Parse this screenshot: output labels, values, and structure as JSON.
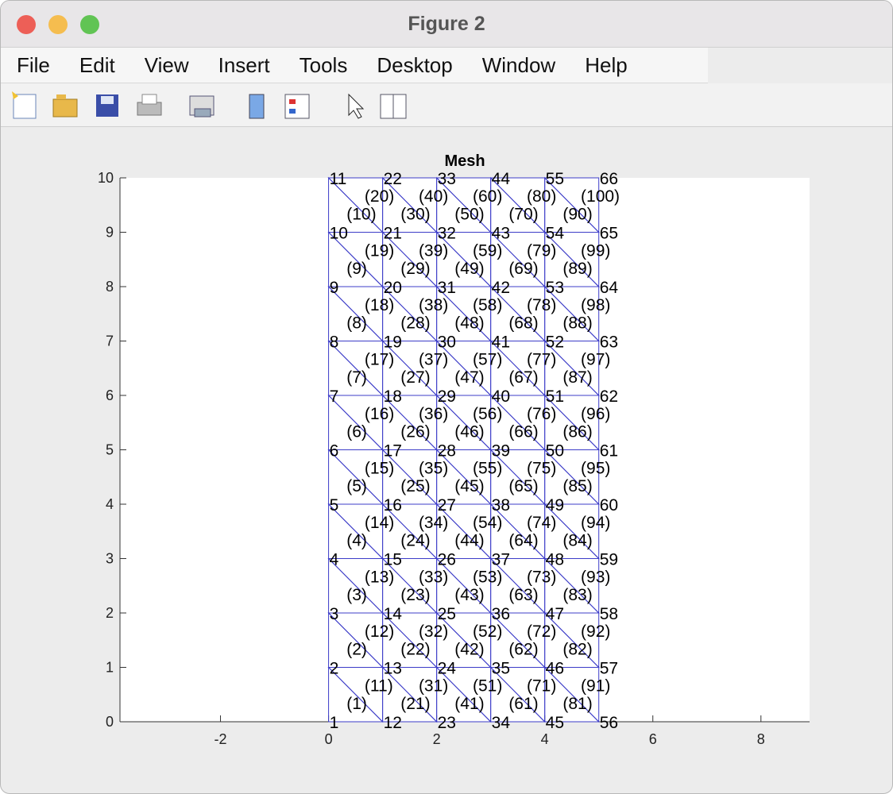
{
  "window": {
    "title": "Figure 2",
    "menu": [
      "File",
      "Edit",
      "View",
      "Insert",
      "Tools",
      "Desktop",
      "Window",
      "Help"
    ]
  },
  "chart_data": {
    "type": "mesh",
    "title": "Mesh",
    "color": "#3c3cc8",
    "xlim": [
      -3.86,
      8.9
    ],
    "ylim": [
      0,
      10
    ],
    "xticks": [
      -2,
      0,
      2,
      4,
      6,
      8
    ],
    "yticks": [
      0,
      1,
      2,
      3,
      4,
      5,
      6,
      7,
      8,
      9,
      10
    ],
    "nodes": {
      "x": [
        0,
        0,
        0,
        0,
        0,
        0,
        0,
        0,
        0,
        0,
        0,
        1,
        1,
        1,
        1,
        1,
        1,
        1,
        1,
        1,
        1,
        1,
        2,
        2,
        2,
        2,
        2,
        2,
        2,
        2,
        2,
        2,
        2,
        3,
        3,
        3,
        3,
        3,
        3,
        3,
        3,
        3,
        3,
        3,
        4,
        4,
        4,
        4,
        4,
        4,
        4,
        4,
        4,
        4,
        4,
        5,
        5,
        5,
        5,
        5,
        5,
        5,
        5,
        5,
        5,
        5
      ],
      "y": [
        0,
        1,
        2,
        3,
        4,
        5,
        6,
        7,
        8,
        9,
        10,
        0,
        1,
        2,
        3,
        4,
        5,
        6,
        7,
        8,
        9,
        10,
        0,
        1,
        2,
        3,
        4,
        5,
        6,
        7,
        8,
        9,
        10,
        0,
        1,
        2,
        3,
        4,
        5,
        6,
        7,
        8,
        9,
        10,
        0,
        1,
        2,
        3,
        4,
        5,
        6,
        7,
        8,
        9,
        10,
        0,
        1,
        2,
        3,
        4,
        5,
        6,
        7,
        8,
        9,
        10
      ],
      "labels": [
        "1",
        "2",
        "3",
        "4",
        "5",
        "6",
        "7",
        "8",
        "9",
        "10",
        "11",
        "12",
        "13",
        "14",
        "15",
        "16",
        "17",
        "18",
        "19",
        "20",
        "21",
        "22",
        "23",
        "24",
        "25",
        "26",
        "27",
        "28",
        "29",
        "30",
        "31",
        "32",
        "33",
        "34",
        "35",
        "36",
        "37",
        "38",
        "39",
        "40",
        "41",
        "42",
        "43",
        "44",
        "45",
        "46",
        "47",
        "48",
        "49",
        "50",
        "51",
        "52",
        "53",
        "54",
        "55",
        "56",
        "57",
        "58",
        "59",
        "60",
        "61",
        "62",
        "63",
        "64",
        "65",
        "66"
      ]
    },
    "elements": {
      "nodes": [
        [
          1,
          12,
          2
        ],
        [
          2,
          13,
          3
        ],
        [
          3,
          14,
          4
        ],
        [
          4,
          15,
          5
        ],
        [
          5,
          16,
          6
        ],
        [
          6,
          17,
          7
        ],
        [
          7,
          18,
          8
        ],
        [
          8,
          19,
          9
        ],
        [
          9,
          20,
          10
        ],
        [
          10,
          21,
          11
        ],
        [
          12,
          13,
          2
        ],
        [
          13,
          14,
          3
        ],
        [
          14,
          15,
          4
        ],
        [
          15,
          16,
          5
        ],
        [
          16,
          17,
          6
        ],
        [
          17,
          18,
          7
        ],
        [
          18,
          19,
          8
        ],
        [
          19,
          20,
          9
        ],
        [
          20,
          21,
          10
        ],
        [
          21,
          22,
          11
        ],
        [
          12,
          23,
          13
        ],
        [
          13,
          24,
          14
        ],
        [
          14,
          25,
          15
        ],
        [
          15,
          26,
          16
        ],
        [
          16,
          27,
          17
        ],
        [
          17,
          28,
          18
        ],
        [
          18,
          29,
          19
        ],
        [
          19,
          30,
          20
        ],
        [
          20,
          31,
          21
        ],
        [
          21,
          32,
          22
        ],
        [
          23,
          24,
          13
        ],
        [
          24,
          25,
          14
        ],
        [
          25,
          26,
          15
        ],
        [
          26,
          27,
          16
        ],
        [
          27,
          28,
          17
        ],
        [
          28,
          29,
          18
        ],
        [
          29,
          30,
          19
        ],
        [
          30,
          31,
          20
        ],
        [
          31,
          32,
          21
        ],
        [
          32,
          33,
          22
        ],
        [
          23,
          34,
          24
        ],
        [
          24,
          35,
          25
        ],
        [
          25,
          36,
          26
        ],
        [
          26,
          37,
          27
        ],
        [
          27,
          38,
          28
        ],
        [
          28,
          39,
          29
        ],
        [
          29,
          40,
          30
        ],
        [
          30,
          41,
          31
        ],
        [
          31,
          42,
          32
        ],
        [
          32,
          43,
          33
        ],
        [
          34,
          35,
          24
        ],
        [
          35,
          36,
          25
        ],
        [
          36,
          37,
          26
        ],
        [
          37,
          38,
          27
        ],
        [
          38,
          39,
          28
        ],
        [
          39,
          40,
          29
        ],
        [
          40,
          41,
          30
        ],
        [
          41,
          42,
          31
        ],
        [
          42,
          43,
          32
        ],
        [
          43,
          44,
          33
        ],
        [
          34,
          45,
          35
        ],
        [
          35,
          46,
          36
        ],
        [
          36,
          47,
          37
        ],
        [
          37,
          48,
          38
        ],
        [
          38,
          49,
          39
        ],
        [
          39,
          50,
          40
        ],
        [
          40,
          51,
          41
        ],
        [
          41,
          52,
          42
        ],
        [
          42,
          53,
          43
        ],
        [
          43,
          54,
          44
        ],
        [
          45,
          46,
          35
        ],
        [
          46,
          47,
          36
        ],
        [
          47,
          48,
          37
        ],
        [
          48,
          49,
          38
        ],
        [
          49,
          50,
          39
        ],
        [
          50,
          51,
          40
        ],
        [
          51,
          52,
          41
        ],
        [
          52,
          53,
          42
        ],
        [
          53,
          54,
          43
        ],
        [
          54,
          55,
          44
        ],
        [
          45,
          56,
          46
        ],
        [
          46,
          57,
          47
        ],
        [
          47,
          58,
          48
        ],
        [
          48,
          59,
          49
        ],
        [
          49,
          60,
          50
        ],
        [
          50,
          61,
          51
        ],
        [
          51,
          62,
          52
        ],
        [
          52,
          63,
          53
        ],
        [
          53,
          64,
          54
        ],
        [
          54,
          65,
          55
        ],
        [
          56,
          57,
          46
        ],
        [
          57,
          58,
          47
        ],
        [
          58,
          59,
          48
        ],
        [
          59,
          60,
          49
        ],
        [
          60,
          61,
          50
        ],
        [
          61,
          62,
          51
        ],
        [
          62,
          63,
          52
        ],
        [
          63,
          64,
          53
        ],
        [
          64,
          65,
          54
        ],
        [
          65,
          66,
          55
        ]
      ],
      "labels": [
        "(1)",
        "(2)",
        "(3)",
        "(4)",
        "(5)",
        "(6)",
        "(7)",
        "(8)",
        "(9)",
        "(10)",
        "(11)",
        "(12)",
        "(13)",
        "(14)",
        "(15)",
        "(16)",
        "(17)",
        "(18)",
        "(19)",
        "(20)",
        "(21)",
        "(22)",
        "(23)",
        "(24)",
        "(25)",
        "(26)",
        "(27)",
        "(28)",
        "(29)",
        "(30)",
        "(31)",
        "(32)",
        "(33)",
        "(34)",
        "(35)",
        "(36)",
        "(37)",
        "(38)",
        "(39)",
        "(40)",
        "(41)",
        "(42)",
        "(43)",
        "(44)",
        "(45)",
        "(46)",
        "(47)",
        "(48)",
        "(49)",
        "(50)",
        "(51)",
        "(52)",
        "(53)",
        "(54)",
        "(55)",
        "(56)",
        "(57)",
        "(58)",
        "(59)",
        "(60)",
        "(61)",
        "(62)",
        "(63)",
        "(64)",
        "(65)",
        "(66)",
        "(67)",
        "(68)",
        "(69)",
        "(70)",
        "(71)",
        "(72)",
        "(73)",
        "(74)",
        "(75)",
        "(76)",
        "(77)",
        "(78)",
        "(79)",
        "(80)",
        "(81)",
        "(82)",
        "(83)",
        "(84)",
        "(85)",
        "(86)",
        "(87)",
        "(88)",
        "(89)",
        "(90)",
        "(91)",
        "(92)",
        "(93)",
        "(94)",
        "(95)",
        "(96)",
        "(97)",
        "(98)",
        "(99)",
        "(100)"
      ]
    }
  }
}
